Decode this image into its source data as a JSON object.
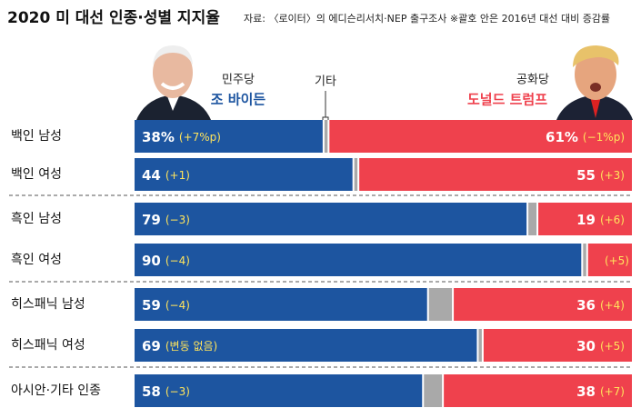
{
  "chart_data": {
    "type": "bar",
    "title": "2020 미 대선 인종·성별 지지율",
    "note": "자료: 〈로이터〉의 에디슨리서치·NEP 출구조사  ※괄호 안은 2016년 대선 대비 증감률",
    "categories": [
      "백인 남성",
      "백인 여성",
      "흑인 남성",
      "흑인 여성",
      "히스패닉 남성",
      "히스패닉 여성",
      "아시안·기타 인종"
    ],
    "xlim": [
      0,
      100
    ],
    "series": [
      {
        "name": "조 바이든",
        "party": "민주당",
        "color": "#1d55a0",
        "values": [
          38,
          44,
          79,
          90,
          59,
          69,
          58
        ],
        "value_labels": [
          "38%",
          "44",
          "79",
          "90",
          "59",
          "69",
          "58"
        ],
        "changes": [
          "(+7%p)",
          "(+1)",
          "(−3)",
          "(−4)",
          "(−4)",
          "(변동 없음)",
          "(−3)"
        ]
      },
      {
        "name": "기타",
        "color": "#a9a9a9",
        "values": [
          1,
          1,
          2,
          1,
          5,
          1,
          4
        ]
      },
      {
        "name": "도널드 트럼프",
        "party": "공화당",
        "color": "#ef414d",
        "values": [
          61,
          55,
          19,
          9,
          36,
          30,
          38
        ],
        "value_labels": [
          "61%",
          "55",
          "19",
          null,
          "36",
          "30",
          "38"
        ],
        "changes": [
          "(−1%p)",
          "(+3)",
          "(+6)",
          "(+5)",
          "(+4)",
          "(+5)",
          "(+7)"
        ]
      }
    ]
  }
}
